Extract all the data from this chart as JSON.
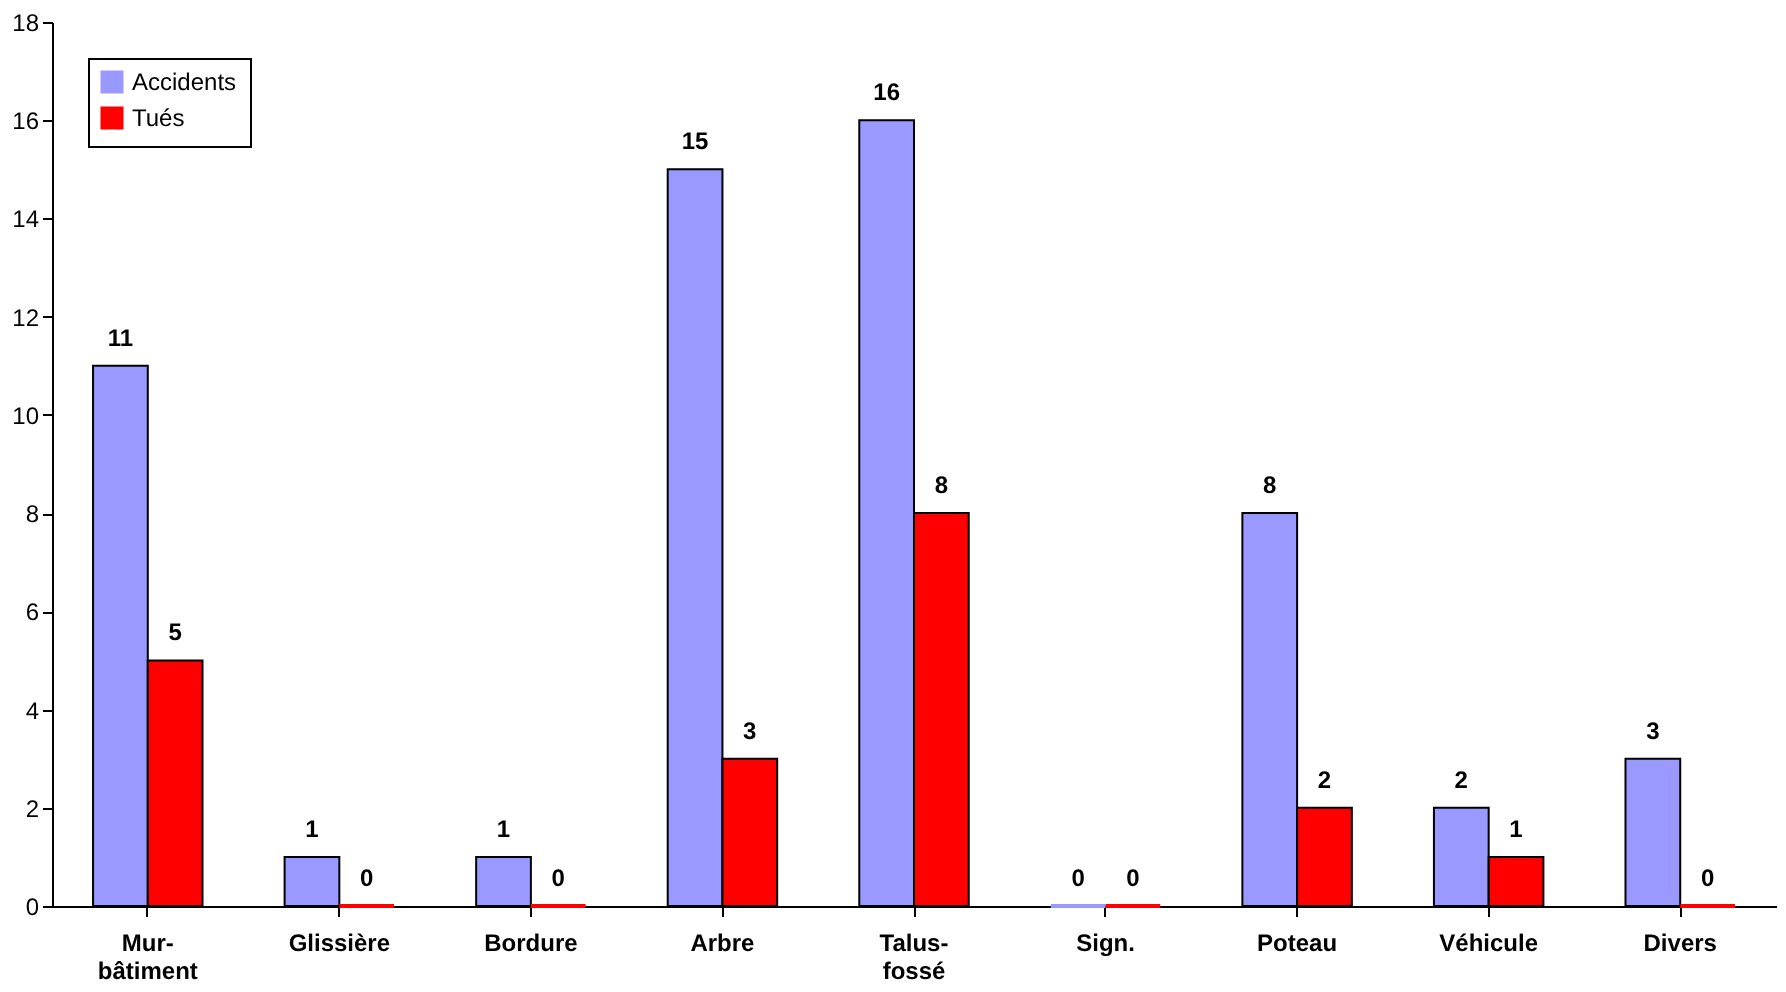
{
  "chart_data": {
    "type": "bar",
    "categories": [
      "Mur-\nbâtiment",
      "Glissière",
      "Bordure",
      "Arbre",
      "Talus-\nfossé",
      "Sign.",
      "Poteau",
      "Véhicule",
      "Divers"
    ],
    "series": [
      {
        "name": "Accidents",
        "color": "#9999ff",
        "values": [
          11,
          1,
          1,
          15,
          16,
          0,
          8,
          2,
          3
        ]
      },
      {
        "name": "Tués",
        "color": "#ff0000",
        "values": [
          5,
          0,
          0,
          3,
          8,
          0,
          2,
          1,
          0
        ]
      }
    ],
    "ylim": [
      0,
      18
    ],
    "yticks": [
      0,
      2,
      4,
      6,
      8,
      10,
      12,
      14,
      16,
      18
    ],
    "grid": false,
    "legend": "top left",
    "data_labels": true
  }
}
